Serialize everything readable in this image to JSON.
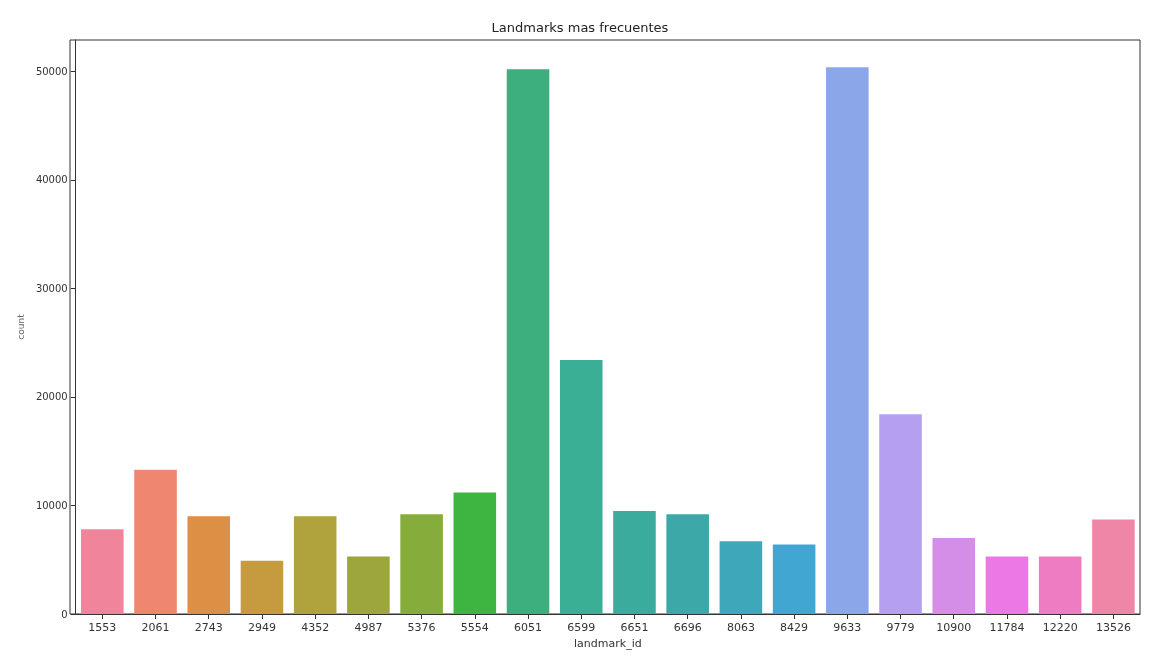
{
  "chart_data": {
    "type": "bar",
    "title": "Landmarks mas frecuentes",
    "xlabel": "landmark_id",
    "ylabel": "count",
    "categories": [
      "1553",
      "2061",
      "2743",
      "2949",
      "4352",
      "4987",
      "5376",
      "5554",
      "6051",
      "6599",
      "6651",
      "6696",
      "8063",
      "8429",
      "9633",
      "9779",
      "10900",
      "11784",
      "12220",
      "13526"
    ],
    "values": [
      7800,
      13300,
      9000,
      4900,
      9000,
      5300,
      9200,
      11200,
      50200,
      23400,
      9500,
      9200,
      6700,
      6400,
      50400,
      18400,
      7000,
      5300,
      5300,
      8700
    ],
    "colors": [
      "#f0849a",
      "#ee8670",
      "#dc8f45",
      "#c69a3e",
      "#b0a23c",
      "#9ca63c",
      "#86ac3c",
      "#3eb441",
      "#3dae7d",
      "#3aaf96",
      "#3bab9e",
      "#3ca9a8",
      "#3ea8ba",
      "#42a6d3",
      "#8ca6ea",
      "#b59ff0",
      "#d48ee8",
      "#eb78e4",
      "#ee7cc2",
      "#ef86a8"
    ],
    "ylim": [
      0,
      52900
    ],
    "yticks": [
      0,
      10000,
      20000,
      30000,
      40000,
      50000
    ],
    "grid": false
  }
}
